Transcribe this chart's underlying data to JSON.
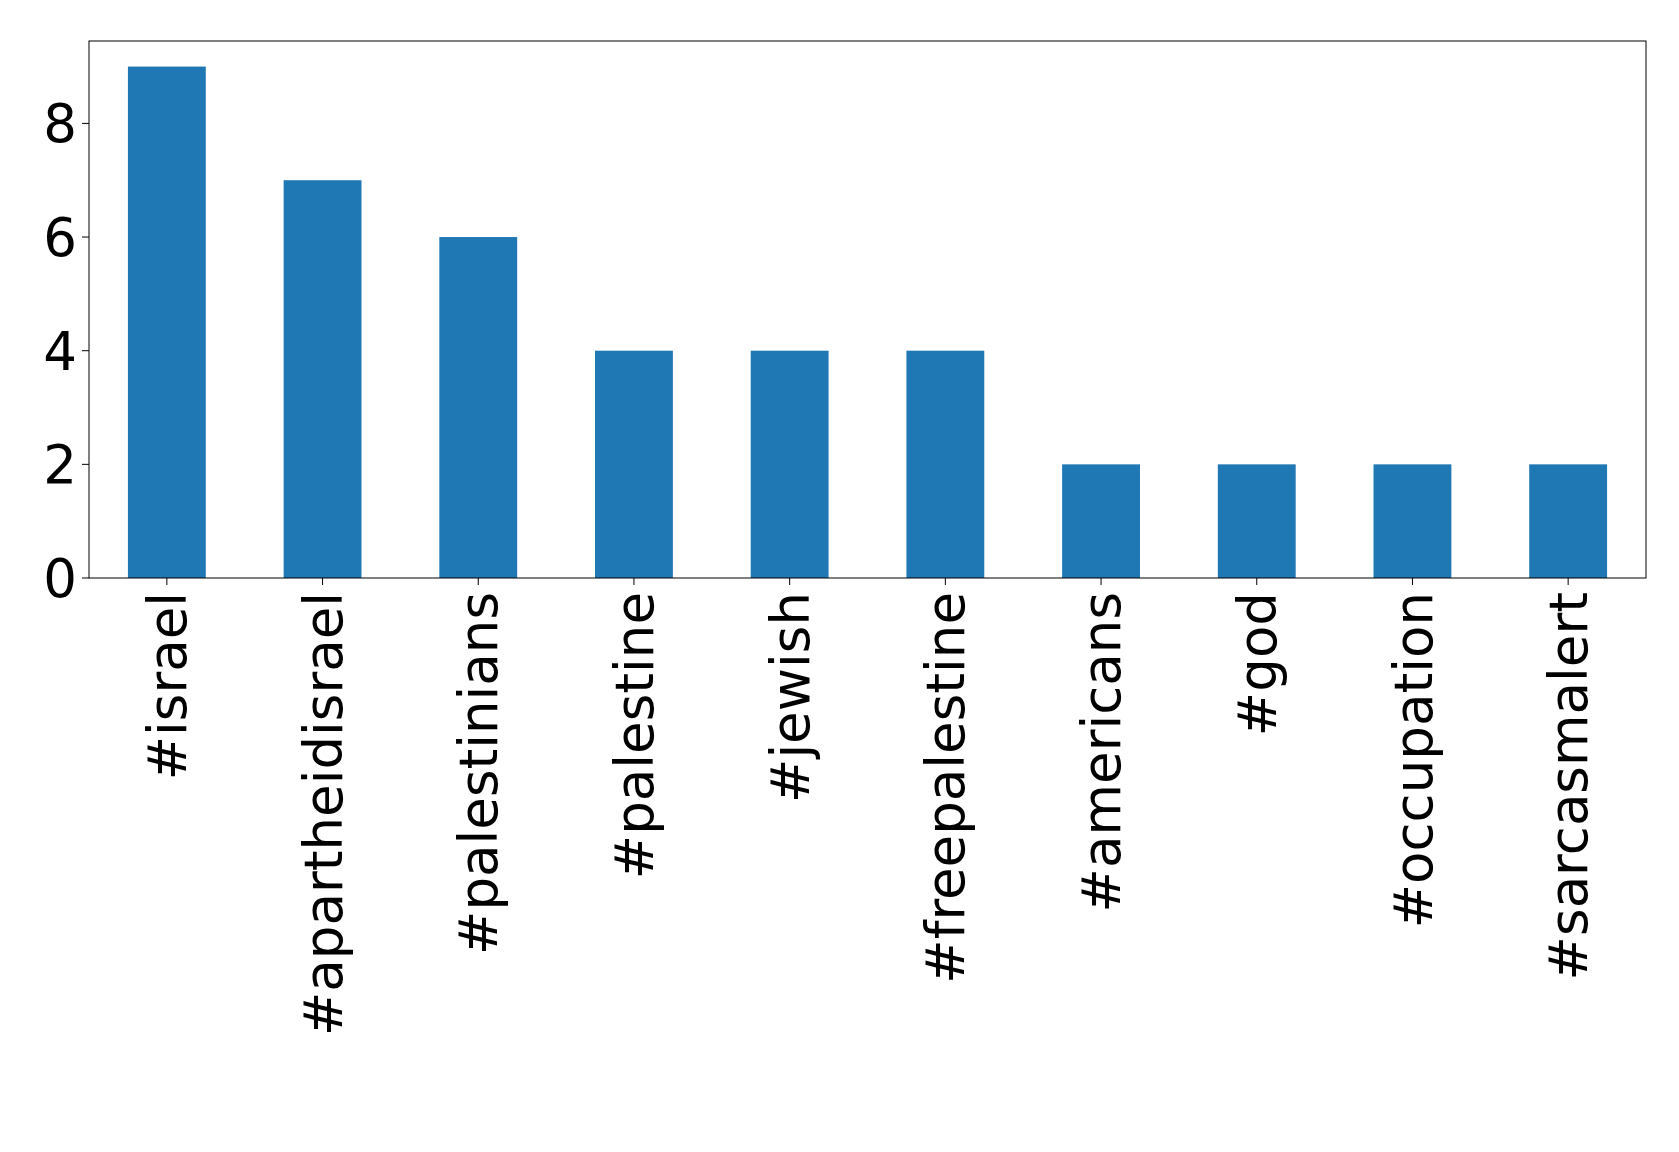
{
  "chart_data": {
    "type": "bar",
    "categories": [
      "#israel",
      "#apartheidisrael",
      "#palestinians",
      "#palestine",
      "#jewish",
      "#freepalestine",
      "#americans",
      "#god",
      "#occupation",
      "#sarcasmalert"
    ],
    "values": [
      9,
      7,
      6,
      4,
      4,
      4,
      2,
      2,
      2,
      2
    ],
    "color": "#1f77b4",
    "ylim": [
      0,
      9.45
    ],
    "yticks": [
      0,
      2,
      4,
      6,
      8
    ]
  }
}
